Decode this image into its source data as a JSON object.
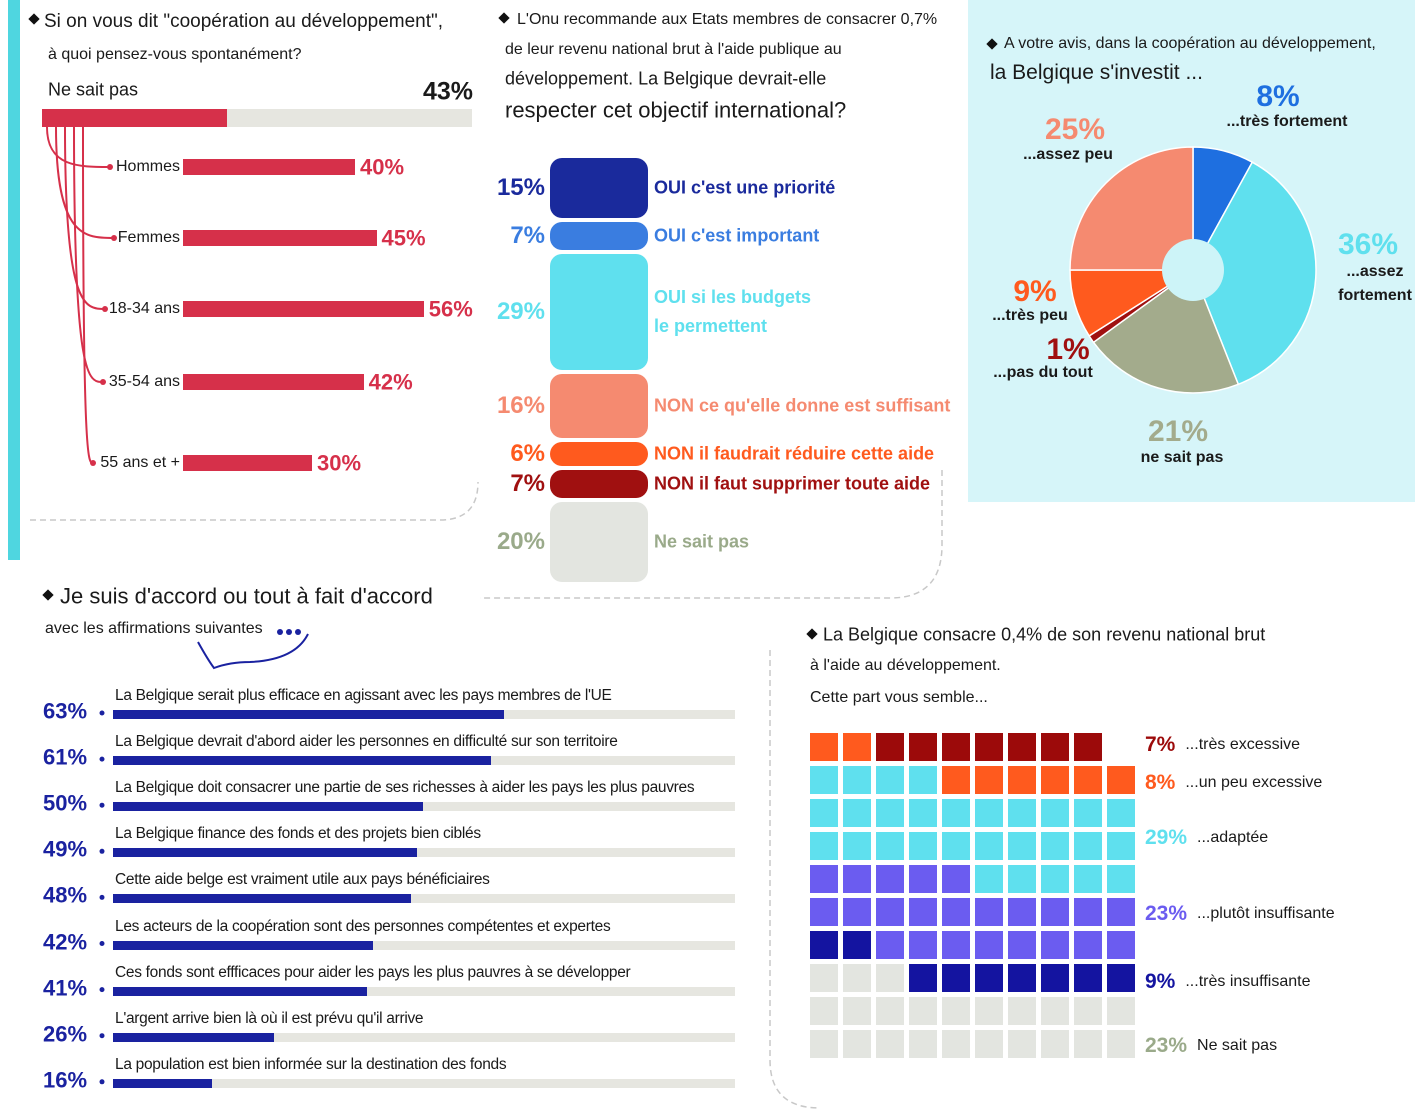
{
  "chart_data": [
    {
      "type": "bar",
      "title": [
        "Si on vous dit \"coopération au développement\",",
        "à quoi pensez-vous spontanément?"
      ],
      "categories": [
        "Ne sait pas",
        "Hommes",
        "Femmes",
        "18-34 ans",
        "35-54 ans",
        "55 ans et +"
      ],
      "values": [
        43,
        40,
        45,
        56,
        42,
        30
      ],
      "value_labels": [
        "43%",
        "40%",
        "45%",
        "56%",
        "42%",
        "30%"
      ],
      "color": "#d6304a",
      "track_color": "#e6e6e0"
    },
    {
      "type": "stacked-bar",
      "title": [
        "L'Onu recommande aux Etats membres de consacrer 0,7%",
        "de leur revenu national brut à l'aide publique au",
        "développement. La Belgique devrait-elle",
        "respecter cet objectif international?"
      ],
      "categories": [
        "OUI c'est une priorité",
        "OUI c'est important",
        "OUI si les budgets le permettent",
        "NON ce qu'elle donne est suffisant",
        "NON il faudrait réduire cette aide",
        "NON il faut supprimer toute aide",
        "Ne sait pas"
      ],
      "values": [
        15,
        7,
        29,
        16,
        6,
        7,
        20
      ],
      "value_labels": [
        "15%",
        "7%",
        "29%",
        "16%",
        "6%",
        "7%",
        "20%"
      ],
      "colors": [
        "#1a2a9c",
        "#3a7de0",
        "#5fe0ee",
        "#f58a70",
        "#ff5a1e",
        "#a01010",
        "#e3e5e0"
      ],
      "text_colors": [
        "#1a2a9c",
        "#3a7de0",
        "#5fe0ee",
        "#f58a70",
        "#ff5a1e",
        "#a01010",
        "#9aaa8a"
      ]
    },
    {
      "type": "pie",
      "title": [
        "A votre avis, dans la coopération au développement,",
        "la Belgique s'investit ..."
      ],
      "categories": [
        "...très fortement",
        "...assez fortement",
        "ne sait pas",
        "...pas du tout",
        "...très peu",
        "...assez peu"
      ],
      "values": [
        8,
        36,
        21,
        1,
        9,
        25
      ],
      "value_labels": [
        "8%",
        "36%",
        "21%",
        "1%",
        "9%",
        "25%"
      ],
      "colors": [
        "#1e6fe0",
        "#5fe0ee",
        "#a3ab8c",
        "#a01010",
        "#ff5a1e",
        "#f58a70"
      ]
    },
    {
      "type": "bar",
      "title": "Je suis d'accord ou tout à fait d'accord",
      "subtitle": "avec les affirmations suivantes",
      "categories": [
        "La Belgique serait plus efficace en agissant avec les pays membres de l'UE",
        "La Belgique devrait d'abord aider les personnes en difficulté sur son territoire",
        "La Belgique doit consacrer une partie de ses richesses à aider les pays les plus pauvres",
        "La Belgique finance des fonds et des projets bien ciblés",
        "Cette aide belge est vraiment utile aux pays bénéficiaires",
        "Les acteurs de la coopération sont des personnes compétentes et expertes",
        "Ces fonds sont effficaces pour aider les pays les plus pauvres à se développer",
        "L'argent arrive bien là où il est prévu qu'il arrive",
        "La population est bien informée sur la destination des fonds"
      ],
      "values": [
        63,
        61,
        50,
        49,
        48,
        42,
        41,
        26,
        16
      ],
      "value_labels": [
        "63%",
        "61%",
        "50%",
        "49%",
        "48%",
        "42%",
        "41%",
        "26%",
        "16%"
      ],
      "color": "#1a22a0",
      "track_color": "#e6e6e0"
    },
    {
      "type": "waffle",
      "title": [
        "La Belgique consacre 0,4% de son revenu national brut",
        "à l'aide au développement.",
        "Cette part vous semble..."
      ],
      "categories": [
        "...très excessive",
        "...un peu excessive",
        "...adaptée",
        "...plutôt insuffisante",
        "...très insuffisante",
        "Ne sait pas"
      ],
      "values": [
        7,
        8,
        29,
        23,
        9,
        23
      ],
      "value_labels": [
        "7%",
        "8%",
        "29%",
        "23%",
        "9%",
        "23%"
      ],
      "colors": [
        "#9c0a0a",
        "#ff5a1e",
        "#5fe0ee",
        "#6b5cf0",
        "#1414a0",
        "#e3e5e0"
      ],
      "text_colors": [
        "#9c0a0a",
        "#ff5a1e",
        "#5fe0ee",
        "#6b5cf0",
        "#1414a0",
        "#9aaa8a"
      ]
    }
  ]
}
